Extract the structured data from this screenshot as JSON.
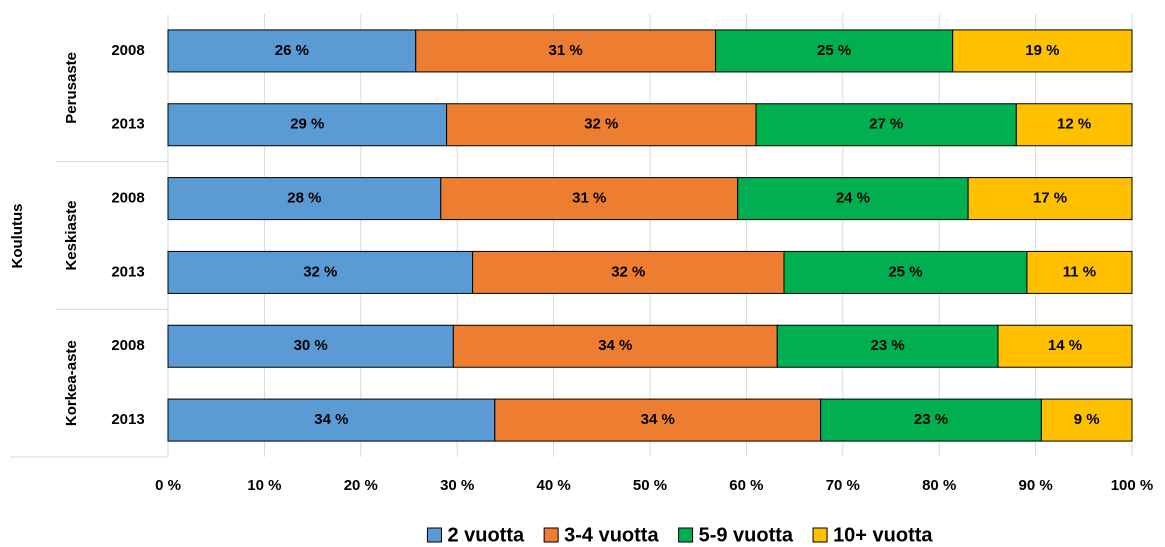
{
  "chart_data": {
    "type": "stacked_barh",
    "y_axis_label": "Koulutus",
    "groups": [
      "Perusaste",
      "Keskiaste",
      "Korkea-aste"
    ],
    "categories": [
      "2008",
      "2013",
      "2008",
      "2013",
      "2008",
      "2013"
    ],
    "series": [
      {
        "name": "2 vuotta",
        "color": "#5b9bd5",
        "values": [
          25.7,
          28.9,
          28.3,
          31.6,
          29.6,
          33.9
        ],
        "value_labels": [
          "26 %",
          "29 %",
          "28 %",
          "32 %",
          "30 %",
          "34 %"
        ]
      },
      {
        "name": "3-4 vuotta",
        "color": "#ed7d31",
        "values": [
          31.1,
          32.1,
          30.8,
          32.3,
          33.6,
          33.8
        ],
        "value_labels": [
          "31 %",
          "32 %",
          "31 %",
          "32 %",
          "34 %",
          "34 %"
        ]
      },
      {
        "name": "5-9 vuotta",
        "color": "#00b050",
        "values": [
          24.6,
          27.0,
          23.9,
          25.2,
          22.9,
          22.9
        ],
        "value_labels": [
          "25 %",
          "27 %",
          "24 %",
          "25 %",
          "23 %",
          "23 %"
        ]
      },
      {
        "name": "10+ vuotta",
        "color": "#ffc000",
        "values": [
          18.6,
          12.0,
          17.0,
          10.9,
          13.9,
          9.4
        ],
        "value_labels": [
          "19 %",
          "12 %",
          "17 %",
          "11 %",
          "14 %",
          "9 %"
        ]
      }
    ],
    "xlim": [
      0,
      100
    ],
    "xticks": [
      {
        "value": 0,
        "label": "0 %"
      },
      {
        "value": 10,
        "label": "10 %"
      },
      {
        "value": 20,
        "label": "20 %"
      },
      {
        "value": 30,
        "label": "30 %"
      },
      {
        "value": 40,
        "label": "40 %"
      },
      {
        "value": 50,
        "label": "50 %"
      },
      {
        "value": 60,
        "label": "60 %"
      },
      {
        "value": 70,
        "label": "70 %"
      },
      {
        "value": 80,
        "label": "80 %"
      },
      {
        "value": 90,
        "label": "90 %"
      },
      {
        "value": 100,
        "label": "100 %"
      }
    ],
    "grid": true,
    "legend": "bottom"
  }
}
